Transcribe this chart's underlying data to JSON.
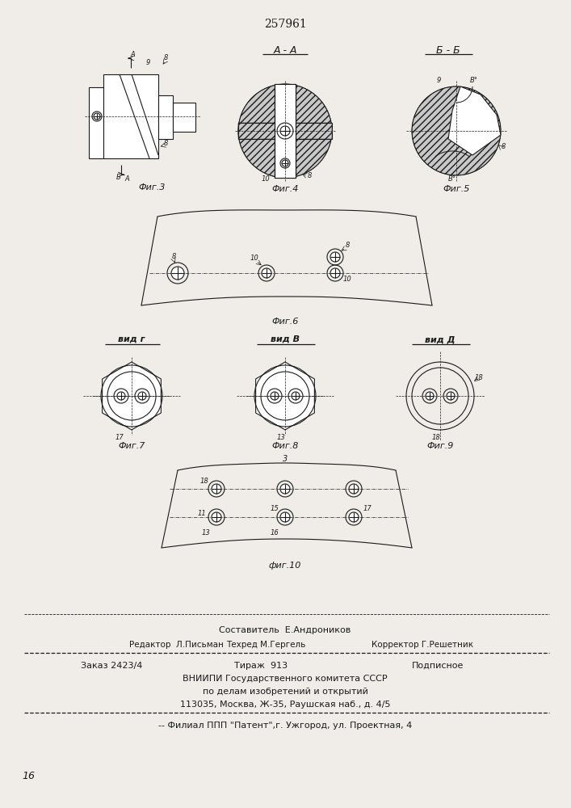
{
  "patent_number": "257961",
  "bg_color": "#f0ede8",
  "line_color": "#1a1a1a",
  "fig3_label": "Фиг.3",
  "fig4_label": "Фиг.4",
  "fig5_label": "Фиг.5",
  "fig6_label": "Фиг.6",
  "fig7_label": "Фиг.7",
  "fig8_label": "Фиг.8",
  "fig9_label": "Фиг.9",
  "fig10_label": "фиг.10",
  "section_aa": "А - А",
  "section_bb": "Б - Б",
  "view_g": "вид г",
  "view_b": "вид В",
  "view_d": "вид Д",
  "footer_compose": "Составитель  Е.Андроников",
  "footer_editor": "Редактор  Л.Письман",
  "footer_techred": "Техред М.Гергель",
  "footer_correct": "Корректор Г.Решетник",
  "footer_order": "Заказ 2423/4",
  "footer_tirazh": "Тираж  913",
  "footer_podp": "Подписное",
  "footer_vniip1": "ВНИИПИ Государственного комитета СССР",
  "footer_vniip2": "по делам изобретений и открытий",
  "footer_addr": "113035, Москва, Ж-35, Раушская наб., д. 4/5",
  "footer_filial": "Филиал ППП \"Патент\",г. Ужгород, ул. Проектная, 4",
  "corner_label": "16"
}
